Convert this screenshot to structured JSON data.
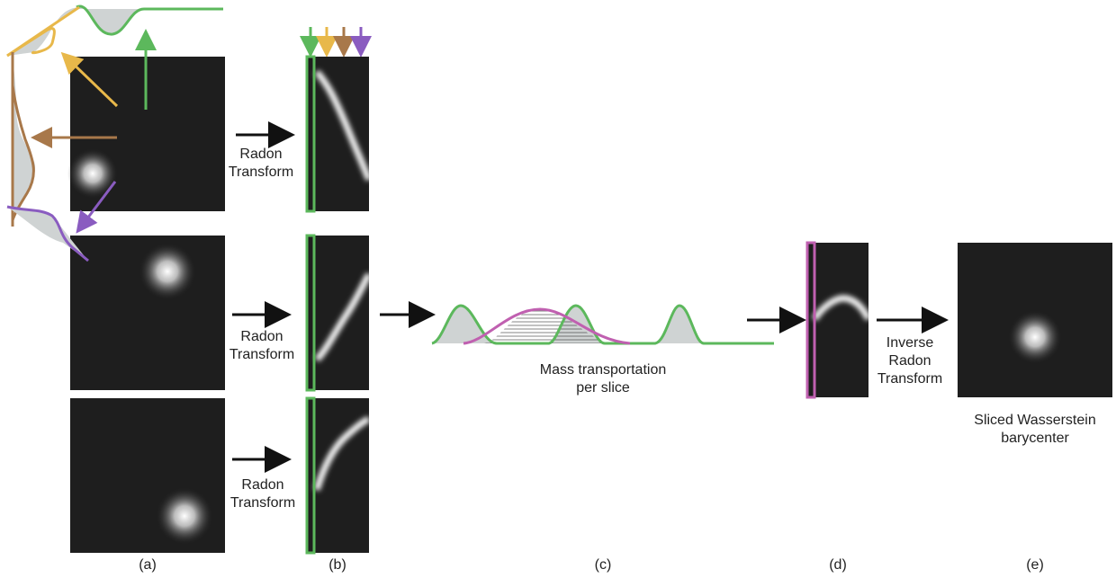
{
  "labels": {
    "radon_1_line1": "Radon",
    "radon_1_line2": "Transform",
    "radon_2_line1": "Radon",
    "radon_2_line2": "Transform",
    "radon_3_line1": "Radon",
    "radon_3_line2": "Transform",
    "mass_line1": "Mass transportation",
    "mass_line2": "per slice",
    "inverse_line1": "Inverse",
    "inverse_line2": "Radon",
    "inverse_line3": "Transform",
    "result_line1": "Sliced Wasserstein",
    "result_line2": "barycenter"
  },
  "panel_labels": {
    "a": "(a)",
    "b": "(b)",
    "c": "(c)",
    "d": "(d)",
    "e": "(e)"
  },
  "colors": {
    "green": "#5cb85c",
    "yellow": "#e8b84a",
    "brown": "#a8784a",
    "purple": "#8a5cc0",
    "magenta": "#c060b0",
    "dark": "#1e1e1e",
    "fill_gray": "#cfd3d3"
  }
}
